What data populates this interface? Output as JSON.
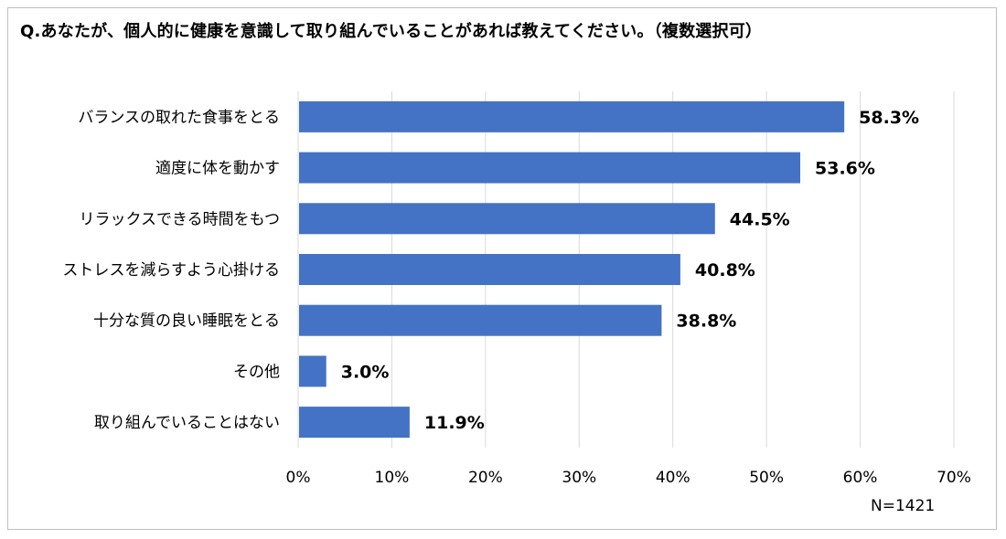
{
  "chart_data": {
    "type": "bar",
    "orientation": "horizontal",
    "title": "Q.あなたが、個人的に健康を意識して取り組んでいることがあれば教えてください。（複数選択可）",
    "categories": [
      "バランスの取れた食事をとる",
      "適度に体を動かす",
      "リラックスできる時間をもつ",
      "ストレスを減らすよう心掛ける",
      "十分な質の良い睡眠をとる",
      "その他",
      "取り組んでいることはない"
    ],
    "values": [
      58.3,
      53.6,
      44.5,
      40.8,
      38.8,
      3.0,
      11.9
    ],
    "value_labels": [
      "58.3%",
      "53.6%",
      "44.5%",
      "40.8%",
      "38.8%",
      "3.0%",
      "11.9%"
    ],
    "xlim": [
      0,
      70
    ],
    "xticks": [
      0,
      10,
      20,
      30,
      40,
      50,
      60,
      70
    ],
    "xtick_labels": [
      "0%",
      "10%",
      "20%",
      "30%",
      "40%",
      "50%",
      "60%",
      "70%"
    ],
    "grid": "vertical",
    "bar_color": "#4472c4",
    "note": "N=1421"
  }
}
